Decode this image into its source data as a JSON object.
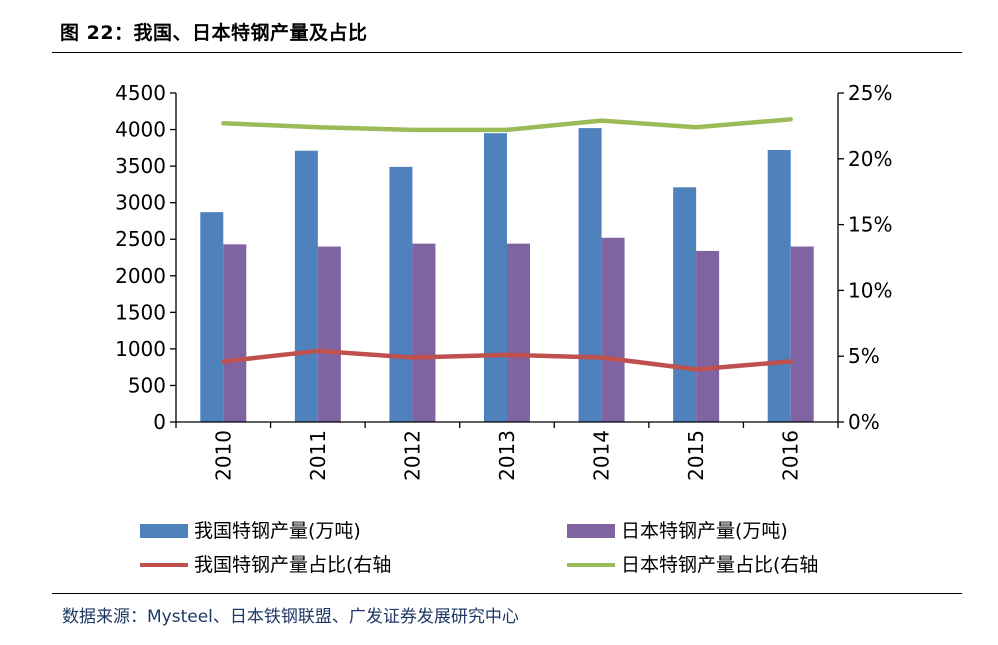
{
  "title": "图  22：我国、日本特钢产量及占比",
  "source": "数据来源：Mysteel、日本铁钢联盟、广发证券发展研究中心",
  "colors": {
    "china_bar": "#4f81bd",
    "japan_bar": "#8064a2",
    "china_share": "#c0504d",
    "japan_share": "#9bbb59",
    "axis": "#000000"
  },
  "chart_data": {
    "type": "bar",
    "categories": [
      "2010",
      "2011",
      "2012",
      "2013",
      "2014",
      "2015",
      "2016"
    ],
    "series": [
      {
        "name": "我国特钢产量(万吨)",
        "type": "bar",
        "axis": "left",
        "values": [
          2870,
          3710,
          3490,
          3950,
          4020,
          3210,
          3720
        ]
      },
      {
        "name": "日本特钢产量(万吨)",
        "type": "bar",
        "axis": "left",
        "values": [
          2430,
          2400,
          2440,
          2440,
          2520,
          2340,
          2400
        ]
      },
      {
        "name": "我国特钢产量占比(右轴",
        "type": "line",
        "axis": "right",
        "values": [
          4.6,
          5.4,
          4.9,
          5.1,
          4.9,
          4.0,
          4.6
        ]
      },
      {
        "name": "日本特钢产量占比(右轴",
        "type": "line",
        "axis": "right",
        "values": [
          22.7,
          22.4,
          22.2,
          22.2,
          22.9,
          22.4,
          23.0
        ]
      }
    ],
    "ylim": [
      0,
      4500
    ],
    "y_ticks": [
      "0",
      "500",
      "1000",
      "1500",
      "2000",
      "2500",
      "3000",
      "3500",
      "4000",
      "4500"
    ],
    "y2lim": [
      0,
      25
    ],
    "y2_ticks": [
      "0%",
      "5%",
      "10%",
      "15%",
      "20%",
      "25%"
    ],
    "grid": false,
    "legend_position": "bottom"
  }
}
